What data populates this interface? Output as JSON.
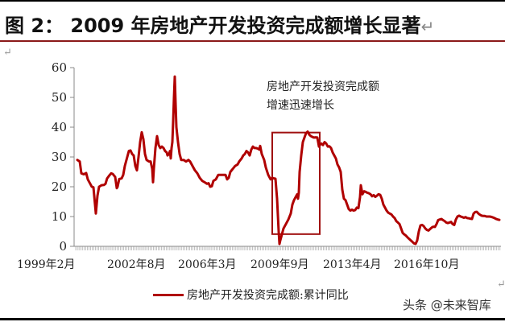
{
  "header": {
    "title": "图 2： 2009 年房地产开发投资完成额增长显著",
    "return_mark": "↵"
  },
  "annotation": {
    "line1": "房地产开发投资完成额",
    "line2": "增速迅速增长"
  },
  "legend": {
    "label": "房地产开发投资完成额:累计同比"
  },
  "watermark": "头条 @未来智库",
  "colors": {
    "series": "#b00000",
    "box": "#a01010",
    "axis": "#888888",
    "rule": "#8b1a1a"
  },
  "chart_data": {
    "type": "line",
    "title": "2009 年房地产开发投资完成额增长显著",
    "xlabel": "",
    "ylabel": "",
    "ylim": [
      0,
      60
    ],
    "yticks": [
      0,
      10,
      20,
      30,
      40,
      50,
      60
    ],
    "xtick_labels": [
      "1999年2月",
      "2002年8月",
      "2006年3月",
      "2009年9月",
      "2013年4月",
      "2016年10月"
    ],
    "grid": false,
    "legend_position": "bottom",
    "series": [
      {
        "name": "房地产开发投资完成额:累计同比",
        "points": [
          [
            96,
            29
          ],
          [
            99,
            28.5
          ],
          [
            101,
            24.5
          ],
          [
            104,
            24.2
          ],
          [
            107,
            24.6
          ],
          [
            109,
            22.5
          ],
          [
            112,
            21
          ],
          [
            114,
            20
          ],
          [
            116,
            19.8
          ],
          [
            118,
            14
          ],
          [
            119,
            11
          ],
          [
            121,
            17
          ],
          [
            123,
            20
          ],
          [
            126,
            20.5
          ],
          [
            129,
            20.6
          ],
          [
            131,
            21
          ],
          [
            133,
            22.8
          ],
          [
            136,
            23.9
          ],
          [
            138,
            24.5
          ],
          [
            140,
            24.3
          ],
          [
            143,
            23.3
          ],
          [
            145,
            19.5
          ],
          [
            146,
            20
          ],
          [
            148,
            22.6
          ],
          [
            151,
            22.8
          ],
          [
            153,
            24
          ],
          [
            155,
            27
          ],
          [
            158,
            30
          ],
          [
            160,
            32
          ],
          [
            162,
            32.2
          ],
          [
            164,
            31
          ],
          [
            166,
            30.5
          ],
          [
            168,
            27
          ],
          [
            170,
            25.5
          ],
          [
            172,
            30
          ],
          [
            174,
            35
          ],
          [
            176,
            38.3
          ],
          [
            178,
            36
          ],
          [
            180,
            31
          ],
          [
            182,
            29
          ],
          [
            185,
            28.5
          ],
          [
            187,
            28.5
          ],
          [
            189,
            26
          ],
          [
            190,
            21.5
          ],
          [
            191,
            26
          ],
          [
            193,
            33
          ],
          [
            195,
            37
          ],
          [
            197,
            34
          ],
          [
            199,
            33
          ],
          [
            201,
            33.5
          ],
          [
            203,
            33
          ],
          [
            205,
            32
          ],
          [
            207,
            31.5
          ],
          [
            208,
            30.5
          ],
          [
            210,
            31
          ],
          [
            211,
            32
          ],
          [
            212,
            29.5
          ],
          [
            213,
            33
          ],
          [
            214,
            35
          ],
          [
            215,
            42
          ],
          [
            216,
            50
          ],
          [
            217,
            57
          ],
          [
            218,
            48
          ],
          [
            219,
            40
          ],
          [
            221,
            35
          ],
          [
            223,
            31
          ],
          [
            225,
            29
          ],
          [
            228,
            29
          ],
          [
            231,
            28.5
          ],
          [
            234,
            29
          ],
          [
            236,
            28.5
          ],
          [
            239,
            27
          ],
          [
            242,
            25.5
          ],
          [
            245,
            24.5
          ],
          [
            248,
            23
          ],
          [
            251,
            22
          ],
          [
            254,
            21.5
          ],
          [
            257,
            21
          ],
          [
            259,
            21.2
          ],
          [
            261,
            20
          ],
          [
            263,
            20.2
          ],
          [
            265,
            22
          ],
          [
            268,
            22.5
          ],
          [
            271,
            24
          ],
          [
            274,
            24
          ],
          [
            277,
            24
          ],
          [
            280,
            24
          ],
          [
            282,
            22.5
          ],
          [
            284,
            23
          ],
          [
            286,
            25
          ],
          [
            289,
            26
          ],
          [
            292,
            27
          ],
          [
            295,
            27.5
          ],
          [
            297,
            28.5
          ],
          [
            300,
            29.5
          ],
          [
            302,
            30.5
          ],
          [
            304,
            31
          ],
          [
            306,
            32
          ],
          [
            308,
            31.5
          ],
          [
            310,
            30.5
          ],
          [
            312,
            32.5
          ],
          [
            314,
            33.5
          ],
          [
            316,
            33
          ],
          [
            318,
            33
          ],
          [
            320,
            32.8
          ],
          [
            322,
            32.5
          ],
          [
            323,
            33.7
          ],
          [
            325,
            31
          ],
          [
            328,
            29
          ],
          [
            330,
            26.5
          ],
          [
            333,
            24
          ],
          [
            336,
            22.5
          ],
          [
            338,
            23
          ],
          [
            340,
            22.8
          ],
          [
            342,
            22.7
          ],
          [
            344,
            16
          ],
          [
            346,
            5
          ],
          [
            347,
            0.8
          ],
          [
            348,
            2
          ],
          [
            350,
            4
          ],
          [
            352,
            6
          ],
          [
            355,
            7.5
          ],
          [
            358,
            9
          ],
          [
            361,
            11
          ],
          [
            363,
            14
          ],
          [
            365,
            15.5
          ],
          [
            367,
            16.5
          ],
          [
            369,
            17.5
          ],
          [
            370,
            16
          ],
          [
            371,
            18
          ],
          [
            372,
            25
          ],
          [
            374,
            30.5
          ],
          [
            376,
            35
          ],
          [
            378,
            36.5
          ],
          [
            380,
            38
          ],
          [
            382,
            38.5
          ],
          [
            384,
            37.5
          ],
          [
            386,
            37
          ],
          [
            388,
            36.7
          ],
          [
            390,
            36.5
          ],
          [
            392,
            36.6
          ],
          [
            394,
            36.5
          ],
          [
            396,
            33.5
          ],
          [
            397,
            34
          ],
          [
            399,
            34.5
          ],
          [
            401,
            34
          ],
          [
            403,
            35
          ],
          [
            405,
            34.5
          ],
          [
            407,
            33.5
          ],
          [
            409,
            33.6
          ],
          [
            411,
            33
          ],
          [
            413,
            31.5
          ],
          [
            415,
            30.5
          ],
          [
            417,
            29.5
          ],
          [
            419,
            27.5
          ],
          [
            421,
            26.5
          ],
          [
            423,
            25
          ],
          [
            425,
            19
          ],
          [
            427,
            16
          ],
          [
            429,
            15.5
          ],
          [
            431,
            14
          ],
          [
            433,
            12.5
          ],
          [
            435,
            12
          ],
          [
            437,
            12.3
          ],
          [
            439,
            12
          ],
          [
            441,
            12.2
          ],
          [
            443,
            13
          ],
          [
            445,
            12.8
          ],
          [
            447,
            16.5
          ],
          [
            448,
            20.5
          ],
          [
            449,
            19
          ],
          [
            450,
            17.5
          ],
          [
            452,
            18.5
          ],
          [
            454,
            18.3
          ],
          [
            456,
            18
          ],
          [
            458,
            17.8
          ],
          [
            460,
            17.5
          ],
          [
            462,
            16.8
          ],
          [
            464,
            17.2
          ],
          [
            466,
            16.6
          ],
          [
            468,
            17
          ],
          [
            470,
            17.5
          ],
          [
            472,
            17.3
          ],
          [
            474,
            16
          ],
          [
            476,
            14
          ],
          [
            478,
            13
          ],
          [
            480,
            12
          ],
          [
            482,
            11.3
          ],
          [
            484,
            11
          ],
          [
            486,
            10.7
          ],
          [
            488,
            10
          ],
          [
            490,
            9.5
          ],
          [
            492,
            8.5
          ],
          [
            494,
            8
          ],
          [
            496,
            7.5
          ],
          [
            498,
            6
          ],
          [
            500,
            4.5
          ],
          [
            502,
            4
          ],
          [
            504,
            3.6
          ],
          [
            506,
            3
          ],
          [
            508,
            2.5
          ],
          [
            510,
            2
          ],
          [
            512,
            1.5
          ],
          [
            514,
            1
          ],
          [
            516,
            0.8
          ],
          [
            518,
            2
          ],
          [
            520,
            5
          ],
          [
            522,
            7
          ],
          [
            524,
            7.2
          ],
          [
            526,
            6.8
          ],
          [
            528,
            6
          ],
          [
            530,
            5.5
          ],
          [
            532,
            5.3
          ],
          [
            534,
            5.8
          ],
          [
            536,
            6.3
          ],
          [
            538,
            6.6
          ],
          [
            540,
            6.5
          ],
          [
            542,
            7.5
          ],
          [
            544,
            8.8
          ],
          [
            546,
            9
          ],
          [
            548,
            9.2
          ],
          [
            550,
            8.8
          ],
          [
            552,
            8.5
          ],
          [
            554,
            8
          ],
          [
            556,
            7.8
          ],
          [
            558,
            8
          ],
          [
            560,
            8.2
          ],
          [
            562,
            7.5
          ],
          [
            564,
            7.2
          ],
          [
            566,
            9
          ],
          [
            568,
            10
          ],
          [
            570,
            10.3
          ],
          [
            572,
            10
          ],
          [
            574,
            9.8
          ],
          [
            576,
            9.6
          ],
          [
            578,
            9.8
          ],
          [
            580,
            9.5
          ],
          [
            582,
            9.4
          ],
          [
            584,
            9.3
          ],
          [
            586,
            9.2
          ],
          [
            588,
            11
          ],
          [
            590,
            11.5
          ],
          [
            592,
            11.6
          ],
          [
            594,
            11
          ],
          [
            596,
            10.6
          ],
          [
            598,
            10.3
          ],
          [
            600,
            10.2
          ],
          [
            602,
            10.2
          ],
          [
            604,
            10
          ],
          [
            606,
            10
          ],
          [
            608,
            10
          ],
          [
            610,
            9.9
          ],
          [
            612,
            9.7
          ],
          [
            614,
            9.5
          ],
          [
            616,
            9.2
          ],
          [
            618,
            9.0
          ],
          [
            620,
            8.9
          ]
        ]
      }
    ],
    "annotation_box": {
      "label": "房地产开发投资完成额增速迅速增长",
      "x0": 338,
      "x1": 397,
      "y_top": 38.2,
      "y_bottom": 4.1
    }
  }
}
